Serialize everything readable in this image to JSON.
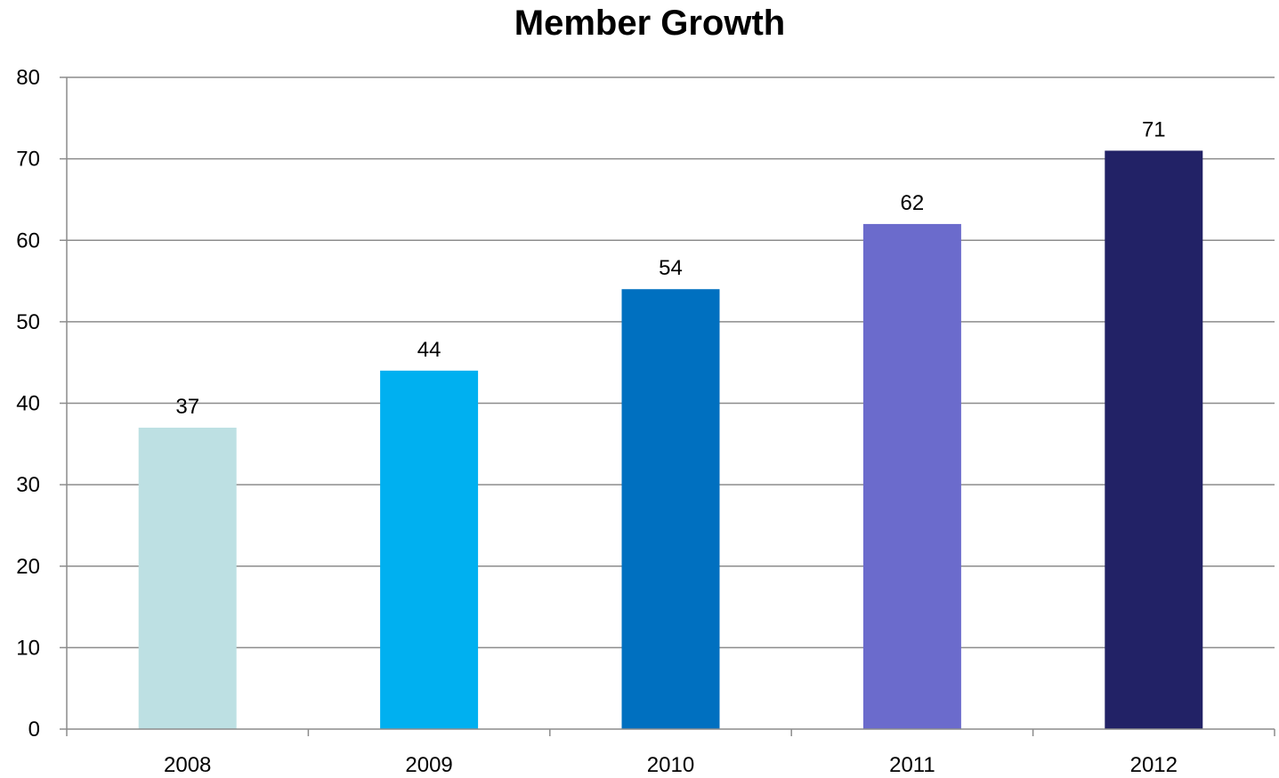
{
  "chart_data": {
    "type": "bar",
    "title": "Member Growth",
    "xlabel": "",
    "ylabel": "",
    "categories": [
      "2008",
      "2009",
      "2010",
      "2011",
      "2012"
    ],
    "series": [
      {
        "values": [
          37,
          44,
          54,
          62,
          71
        ],
        "colors": [
          "#bde0e3",
          "#00b0f0",
          "#0070c0",
          "#6b6bcc",
          "#222266"
        ]
      }
    ],
    "ylim": [
      0,
      80
    ],
    "yticks": [
      0,
      10,
      20,
      30,
      40,
      50,
      60,
      70,
      80
    ],
    "grid": true,
    "legend": "none",
    "data_labels": true
  }
}
